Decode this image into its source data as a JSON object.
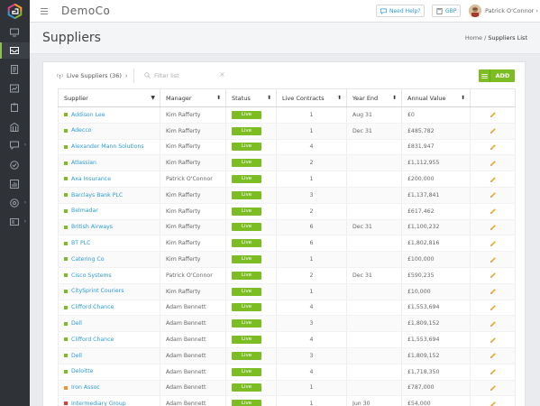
{
  "header": {
    "brand": "DemoCo",
    "help_label": "Need Help?",
    "currency": "GBP",
    "user_name": "Patrick O'Connor"
  },
  "page": {
    "title": "Suppliers",
    "breadcrumb_home": "Home",
    "breadcrumb_sep": "/",
    "breadcrumb_current": "Suppliers List"
  },
  "toolbar": {
    "filter_label": "Live Suppliers (36)",
    "search_placeholder": "Filter list",
    "add_label": "ADD"
  },
  "colors": {
    "accent": "#7cbd24",
    "link": "#2e9bd6",
    "status_green": "#7cbd24",
    "status_orange": "#f0932b",
    "status_red": "#e53935",
    "edit_icon": "#f5a623"
  },
  "sidebar": {
    "icons": [
      "monitor-icon",
      "inbox-icon",
      "document-icon",
      "chart-doc-icon",
      "clipboard-icon",
      "building-icon",
      "chat-icon",
      "gauge-icon",
      "bar-chart-icon",
      "settings-icon",
      "id-card-icon"
    ]
  },
  "table": {
    "columns": [
      "Supplier",
      "Manager",
      "Status",
      "Live Contracts",
      "Year End",
      "Annual Value"
    ],
    "rows": [
      {
        "supplier": "Addison Lee",
        "dot": "green",
        "manager": "Kim Rafferty",
        "status": "Live",
        "contracts": "1",
        "year_end": "Aug 31",
        "value": "£0"
      },
      {
        "supplier": "Adecco",
        "dot": "green",
        "manager": "Kim Rafferty",
        "status": "Live",
        "contracts": "1",
        "year_end": "Dec 31",
        "value": "£485,782"
      },
      {
        "supplier": "Alexander Mann Solutions",
        "dot": "green",
        "manager": "Kim Rafferty",
        "status": "Live",
        "contracts": "4",
        "year_end": "",
        "value": "£831,947"
      },
      {
        "supplier": "Atlassian",
        "dot": "green",
        "manager": "Kim Rafferty",
        "status": "Live",
        "contracts": "2",
        "year_end": "",
        "value": "£1,112,955"
      },
      {
        "supplier": "Axa Insurance",
        "dot": "green",
        "manager": "Patrick O'Connor",
        "status": "Live",
        "contracts": "1",
        "year_end": "",
        "value": "£200,000"
      },
      {
        "supplier": "Barclays Bank PLC",
        "dot": "green",
        "manager": "Kim Rafferty",
        "status": "Live",
        "contracts": "3",
        "year_end": "",
        "value": "£1,137,841"
      },
      {
        "supplier": "Belmadar",
        "dot": "green",
        "manager": "Kim Rafferty",
        "status": "Live",
        "contracts": "2",
        "year_end": "",
        "value": "£617,462"
      },
      {
        "supplier": "British Airways",
        "dot": "green",
        "manager": "Kim Rafferty",
        "status": "Live",
        "contracts": "6",
        "year_end": "Dec 31",
        "value": "£1,100,232"
      },
      {
        "supplier": "BT PLC",
        "dot": "green",
        "manager": "Kim Rafferty",
        "status": "Live",
        "contracts": "6",
        "year_end": "",
        "value": "£1,802,816"
      },
      {
        "supplier": "Catering Co",
        "dot": "green",
        "manager": "Kim Rafferty",
        "status": "Live",
        "contracts": "1",
        "year_end": "",
        "value": "£100,000"
      },
      {
        "supplier": "Cisco Systems",
        "dot": "green",
        "manager": "Patrick O'Connor",
        "status": "Live",
        "contracts": "2",
        "year_end": "Dec 31",
        "value": "£590,235"
      },
      {
        "supplier": "CitySprint Couriers",
        "dot": "green",
        "manager": "Kim Rafferty",
        "status": "Live",
        "contracts": "1",
        "year_end": "",
        "value": "£10,000"
      },
      {
        "supplier": "Clifford Chance",
        "dot": "green",
        "manager": "Adam Bennett",
        "status": "Live",
        "contracts": "4",
        "year_end": "",
        "value": "£1,553,694"
      },
      {
        "supplier": "Dell",
        "dot": "green",
        "manager": "Adam Bennett",
        "status": "Live",
        "contracts": "3",
        "year_end": "",
        "value": "£1,809,152"
      },
      {
        "supplier": "Clifford Chance",
        "dot": "green",
        "manager": "Adam Bennett",
        "status": "Live",
        "contracts": "4",
        "year_end": "",
        "value": "£1,553,694"
      },
      {
        "supplier": "Dell",
        "dot": "green",
        "manager": "Adam Bennett",
        "status": "Live",
        "contracts": "3",
        "year_end": "",
        "value": "£1,809,152"
      },
      {
        "supplier": "Deloitte",
        "dot": "green",
        "manager": "Adam Bennett",
        "status": "Live",
        "contracts": "4",
        "year_end": "",
        "value": "£1,718,350"
      },
      {
        "supplier": "Iron Assoc",
        "dot": "orange",
        "manager": "Adam Bennett",
        "status": "Live",
        "contracts": "1",
        "year_end": "",
        "value": "£787,000"
      },
      {
        "supplier": "Intermediary Group",
        "dot": "red",
        "manager": "Adam Bennett",
        "status": "Live",
        "contracts": "1",
        "year_end": "Jun 30",
        "value": "£54,000"
      }
    ]
  }
}
